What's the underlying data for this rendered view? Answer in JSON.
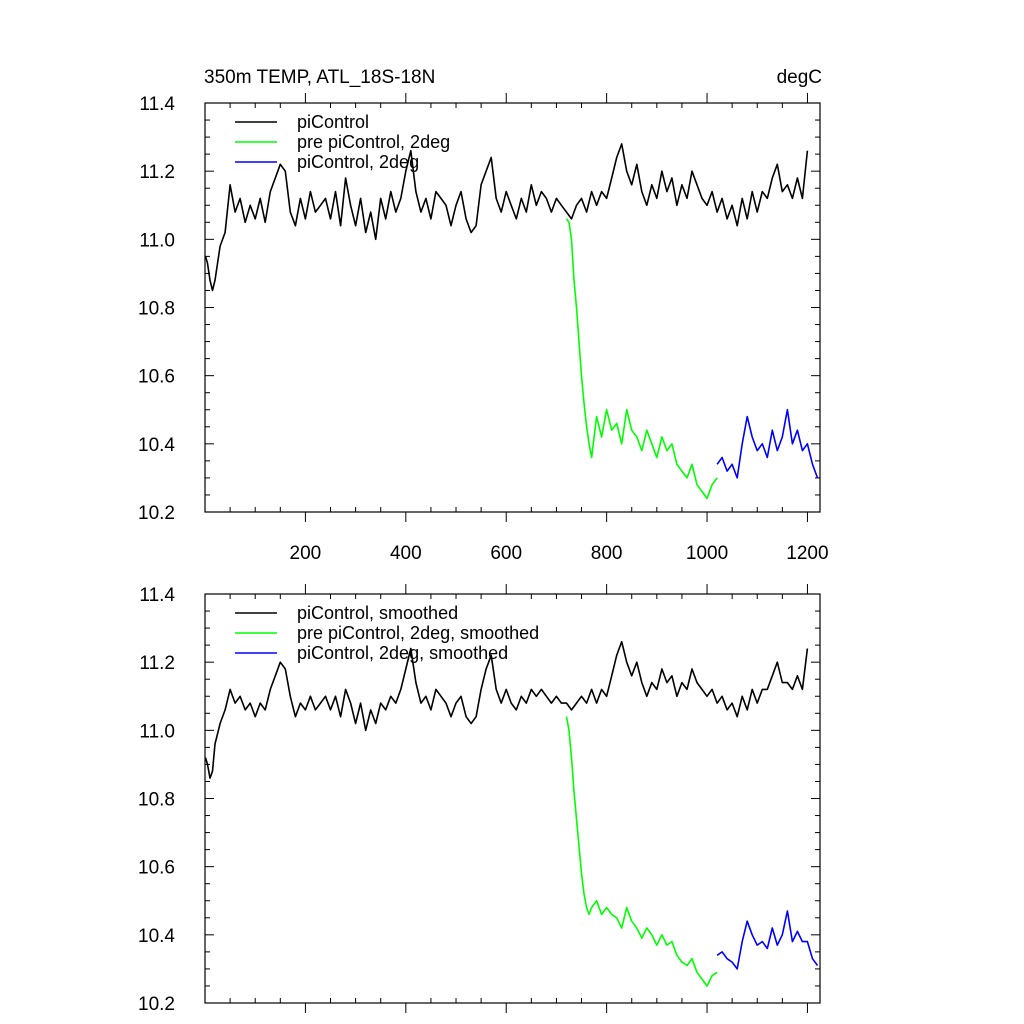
{
  "colors": {
    "black": "#000000",
    "green": "#00ff00",
    "blue": "#0000ff"
  },
  "chart_data": [
    {
      "type": "line",
      "title_left": "350m TEMP, ATL_18S-18N",
      "title_right": "degC",
      "xlim": [
        0,
        1225
      ],
      "ylim": [
        10.2,
        11.4
      ],
      "xticks": [
        200,
        400,
        600,
        800,
        1000,
        1200
      ],
      "xtick_labels": [
        "200",
        "400",
        "600",
        "800",
        "1000",
        "1200"
      ],
      "yticks": [
        10.2,
        10.4,
        10.6,
        10.8,
        11.0,
        11.2,
        11.4
      ],
      "ytick_labels": [
        "10.2",
        "10.4",
        "10.6",
        "10.8",
        "11.0",
        "11.2",
        "11.4"
      ],
      "legend_position": "top-left",
      "series": [
        {
          "name": "piControl",
          "color": "#000000",
          "x": [
            1,
            5,
            10,
            15,
            20,
            30,
            40,
            50,
            60,
            70,
            80,
            90,
            100,
            110,
            120,
            130,
            140,
            150,
            160,
            170,
            180,
            190,
            200,
            210,
            220,
            230,
            240,
            250,
            260,
            270,
            280,
            290,
            300,
            310,
            320,
            330,
            340,
            350,
            360,
            370,
            380,
            390,
            400,
            410,
            420,
            430,
            440,
            450,
            460,
            470,
            480,
            490,
            500,
            510,
            520,
            530,
            540,
            550,
            560,
            570,
            580,
            590,
            600,
            610,
            620,
            630,
            640,
            650,
            660,
            670,
            680,
            690,
            700,
            710,
            720,
            730,
            740,
            750,
            760,
            770,
            780,
            790,
            800,
            810,
            820,
            830,
            840,
            850,
            860,
            870,
            880,
            890,
            900,
            910,
            920,
            930,
            940,
            950,
            960,
            970,
            980,
            990,
            1000,
            1010,
            1020,
            1030,
            1040,
            1050,
            1060,
            1070,
            1080,
            1090,
            1100,
            1110,
            1120,
            1130,
            1140,
            1150,
            1160,
            1170,
            1180,
            1190,
            1200
          ],
          "y": [
            10.95,
            10.93,
            10.88,
            10.85,
            10.88,
            10.98,
            11.02,
            11.16,
            11.08,
            11.12,
            11.05,
            11.1,
            11.06,
            11.12,
            11.05,
            11.14,
            11.18,
            11.22,
            11.2,
            11.08,
            11.04,
            11.12,
            11.06,
            11.14,
            11.08,
            11.1,
            11.12,
            11.06,
            11.14,
            11.04,
            11.18,
            11.1,
            11.04,
            11.12,
            11.02,
            11.08,
            11.0,
            11.12,
            11.06,
            11.14,
            11.08,
            11.12,
            11.2,
            11.26,
            11.14,
            11.08,
            11.12,
            11.06,
            11.14,
            11.12,
            11.1,
            11.04,
            11.1,
            11.14,
            11.06,
            11.02,
            11.04,
            11.16,
            11.2,
            11.24,
            11.12,
            11.08,
            11.14,
            11.1,
            11.06,
            11.12,
            11.08,
            11.16,
            11.1,
            11.14,
            11.12,
            11.08,
            11.12,
            11.1,
            11.08,
            11.06,
            11.1,
            11.12,
            11.08,
            11.14,
            11.1,
            11.14,
            11.12,
            11.18,
            11.24,
            11.28,
            11.2,
            11.16,
            11.22,
            11.14,
            11.1,
            11.16,
            11.12,
            11.2,
            11.14,
            11.18,
            11.1,
            11.16,
            11.12,
            11.2,
            11.16,
            11.12,
            11.1,
            11.14,
            11.08,
            11.12,
            11.06,
            11.1,
            11.04,
            11.12,
            11.06,
            11.14,
            11.08,
            11.14,
            11.12,
            11.18,
            11.22,
            11.14,
            11.16,
            11.12,
            11.18,
            11.12,
            11.26
          ]
        },
        {
          "name": "pre piControl, 2deg",
          "color": "#00ff00",
          "x": [
            720,
            725,
            730,
            735,
            740,
            745,
            750,
            755,
            760,
            765,
            770,
            780,
            790,
            800,
            810,
            820,
            830,
            840,
            850,
            860,
            870,
            880,
            890,
            900,
            910,
            920,
            930,
            940,
            950,
            960,
            970,
            980,
            990,
            1000,
            1010,
            1020
          ],
          "y": [
            11.06,
            11.05,
            11.0,
            10.88,
            10.8,
            10.7,
            10.6,
            10.52,
            10.45,
            10.4,
            10.36,
            10.48,
            10.42,
            10.5,
            10.44,
            10.46,
            10.4,
            10.5,
            10.44,
            10.42,
            10.38,
            10.44,
            10.4,
            10.36,
            10.42,
            10.38,
            10.4,
            10.34,
            10.32,
            10.3,
            10.34,
            10.28,
            10.26,
            10.24,
            10.28,
            10.3
          ]
        },
        {
          "name": "piControl, 2deg",
          "color": "#0000ff",
          "x": [
            1020,
            1030,
            1040,
            1050,
            1060,
            1070,
            1080,
            1090,
            1100,
            1110,
            1120,
            1130,
            1140,
            1150,
            1160,
            1170,
            1180,
            1190,
            1200,
            1210,
            1220
          ],
          "y": [
            10.34,
            10.36,
            10.32,
            10.34,
            10.3,
            10.4,
            10.48,
            10.42,
            10.38,
            10.4,
            10.36,
            10.44,
            10.38,
            10.42,
            10.5,
            10.4,
            10.44,
            10.38,
            10.4,
            10.34,
            10.3
          ]
        }
      ]
    },
    {
      "type": "line",
      "xlim": [
        0,
        1225
      ],
      "ylim": [
        10.2,
        11.4
      ],
      "xticks": [
        200,
        400,
        600,
        800,
        1000,
        1200
      ],
      "yticks": [
        10.2,
        10.4,
        10.6,
        10.8,
        11.0,
        11.2,
        11.4
      ],
      "ytick_labels": [
        "10.2",
        "10.4",
        "10.6",
        "10.8",
        "11.0",
        "11.2",
        "11.4"
      ],
      "legend_position": "top-left",
      "series": [
        {
          "name": "piControl, smoothed",
          "color": "#000000",
          "x": [
            1,
            5,
            10,
            15,
            20,
            30,
            40,
            50,
            60,
            70,
            80,
            90,
            100,
            110,
            120,
            130,
            140,
            150,
            160,
            170,
            180,
            190,
            200,
            210,
            220,
            230,
            240,
            250,
            260,
            270,
            280,
            290,
            300,
            310,
            320,
            330,
            340,
            350,
            360,
            370,
            380,
            390,
            400,
            410,
            420,
            430,
            440,
            450,
            460,
            470,
            480,
            490,
            500,
            510,
            520,
            530,
            540,
            550,
            560,
            570,
            580,
            590,
            600,
            610,
            620,
            630,
            640,
            650,
            660,
            670,
            680,
            690,
            700,
            710,
            720,
            730,
            740,
            750,
            760,
            770,
            780,
            790,
            800,
            810,
            820,
            830,
            840,
            850,
            860,
            870,
            880,
            890,
            900,
            910,
            920,
            930,
            940,
            950,
            960,
            970,
            980,
            990,
            1000,
            1010,
            1020,
            1030,
            1040,
            1050,
            1060,
            1070,
            1080,
            1090,
            1100,
            1110,
            1120,
            1130,
            1140,
            1150,
            1160,
            1170,
            1180,
            1190,
            1200
          ],
          "y": [
            10.92,
            10.9,
            10.86,
            10.88,
            10.96,
            11.02,
            11.06,
            11.12,
            11.08,
            11.1,
            11.06,
            11.08,
            11.04,
            11.08,
            11.06,
            11.12,
            11.16,
            11.2,
            11.18,
            11.1,
            11.04,
            11.08,
            11.06,
            11.1,
            11.06,
            11.08,
            11.1,
            11.06,
            11.1,
            11.04,
            11.12,
            11.08,
            11.02,
            11.08,
            11.0,
            11.06,
            11.02,
            11.08,
            11.06,
            11.1,
            11.08,
            11.12,
            11.18,
            11.24,
            11.14,
            11.08,
            11.1,
            11.06,
            11.12,
            11.1,
            11.08,
            11.04,
            11.08,
            11.1,
            11.04,
            11.02,
            11.04,
            11.12,
            11.18,
            11.22,
            11.12,
            11.08,
            11.12,
            11.08,
            11.06,
            11.1,
            11.08,
            11.12,
            11.1,
            11.12,
            11.1,
            11.08,
            11.1,
            11.08,
            11.08,
            11.06,
            11.08,
            11.1,
            11.08,
            11.12,
            11.08,
            11.12,
            11.1,
            11.16,
            11.22,
            11.26,
            11.2,
            11.16,
            11.2,
            11.14,
            11.1,
            11.14,
            11.12,
            11.18,
            11.14,
            11.16,
            11.1,
            11.14,
            11.12,
            11.18,
            11.14,
            11.12,
            11.1,
            11.12,
            11.08,
            11.1,
            11.06,
            11.08,
            11.04,
            11.1,
            11.06,
            11.12,
            11.08,
            11.12,
            11.12,
            11.16,
            11.2,
            11.14,
            11.14,
            11.12,
            11.16,
            11.12,
            11.24
          ]
        },
        {
          "name": "pre piControl, 2deg, smoothed",
          "color": "#00ff00",
          "x": [
            720,
            725,
            730,
            735,
            740,
            745,
            750,
            755,
            760,
            765,
            770,
            780,
            790,
            800,
            810,
            820,
            830,
            840,
            850,
            860,
            870,
            880,
            890,
            900,
            910,
            920,
            930,
            940,
            950,
            960,
            970,
            980,
            990,
            1000,
            1010,
            1020
          ],
          "y": [
            11.04,
            11.0,
            10.92,
            10.82,
            10.74,
            10.66,
            10.58,
            10.52,
            10.48,
            10.46,
            10.48,
            10.5,
            10.46,
            10.48,
            10.46,
            10.45,
            10.42,
            10.48,
            10.44,
            10.42,
            10.39,
            10.42,
            10.4,
            10.37,
            10.4,
            10.37,
            10.38,
            10.34,
            10.32,
            10.31,
            10.33,
            10.29,
            10.27,
            10.25,
            10.28,
            10.29
          ]
        },
        {
          "name": "piControl, 2deg, smoothed",
          "color": "#0000ff",
          "x": [
            1020,
            1030,
            1040,
            1050,
            1060,
            1070,
            1080,
            1090,
            1100,
            1110,
            1120,
            1130,
            1140,
            1150,
            1160,
            1170,
            1180,
            1190,
            1200,
            1210,
            1220
          ],
          "y": [
            10.34,
            10.35,
            10.33,
            10.32,
            10.3,
            10.38,
            10.44,
            10.4,
            10.37,
            10.38,
            10.36,
            10.42,
            10.37,
            10.4,
            10.47,
            10.38,
            10.41,
            10.38,
            10.38,
            10.33,
            10.31
          ]
        }
      ]
    }
  ]
}
